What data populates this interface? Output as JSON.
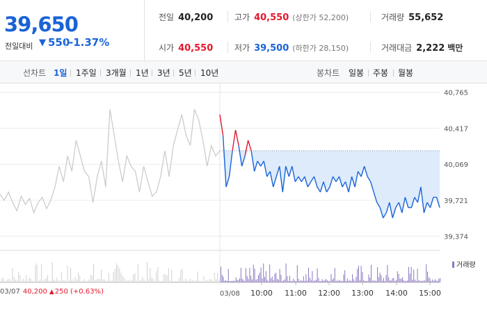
{
  "summary": {
    "current_price": "39,650",
    "change_label": "전일대비",
    "change_arrow": "▼",
    "change_abs": "550",
    "change_pct": "-1.37%",
    "prev_close": {
      "label": "전일",
      "value": "40,200"
    },
    "open": {
      "label": "시가",
      "value": "40,550"
    },
    "high": {
      "label": "고가",
      "value": "40,550",
      "extra": "(상한가 52,200)"
    },
    "low": {
      "label": "저가",
      "value": "39,500",
      "extra": "(하한가 28,150)"
    },
    "volume": {
      "label": "거래량",
      "value": "55,652"
    },
    "amount": {
      "label": "거래대금",
      "value": "2,222",
      "unit": "백만"
    }
  },
  "toolbar": {
    "line_label": "선차트",
    "periods": [
      "1일",
      "1주일",
      "3개월",
      "1년",
      "3년",
      "5년",
      "10년"
    ],
    "active_period": "1일",
    "candle_label": "봉차트",
    "candles": [
      "일봉",
      "주봉",
      "월봉"
    ]
  },
  "colors": {
    "blue": "#1a63d6",
    "red": "#e3182d",
    "gray_line": "#cccccc",
    "fill": "#deebfb",
    "volume": "#8b78c0"
  },
  "footer": {
    "prev_date": "03/07",
    "prev_price": "40,200",
    "prev_arrow": "▲",
    "prev_change": "250 (+0.63%)",
    "today_date": "03/08",
    "volume_legend": "거래량"
  },
  "chart_data": {
    "type": "line",
    "reference_price": 40200,
    "ylim": [
      39250,
      40850
    ],
    "yticks": [
      40765,
      40417,
      40069,
      39721,
      39374
    ],
    "ytick_labels": [
      "40,765",
      "40,417",
      "40,069",
      "39,721",
      "39,374"
    ],
    "xticks": [
      "10:00",
      "11:00",
      "12:00",
      "13:00",
      "14:00",
      "15:00"
    ],
    "series": [
      {
        "date": "03/07",
        "values": [
          39780,
          39720,
          39800,
          39700,
          39620,
          39760,
          39680,
          39740,
          39600,
          39700,
          39750,
          39640,
          39720,
          39850,
          40050,
          39900,
          40150,
          40000,
          40300,
          40150,
          40000,
          39950,
          39700,
          39950,
          40100,
          39850,
          40600,
          40350,
          40100,
          39900,
          40150,
          40050,
          40000,
          39800,
          40050,
          39900,
          39760,
          39800,
          39950,
          40200,
          39950,
          40250,
          40400,
          40550,
          40350,
          40250,
          40600,
          40500,
          40300,
          40050,
          40250,
          40150,
          40200
        ]
      },
      {
        "date": "03/08",
        "values": [
          40550,
          40350,
          39850,
          39950,
          40200,
          40400,
          40250,
          40050,
          40150,
          40300,
          40200,
          40000,
          40100,
          40050,
          40100,
          39950,
          40000,
          39850,
          39950,
          40050,
          39800,
          40050,
          39950,
          40050,
          39900,
          39950,
          39900,
          39950,
          39850,
          39900,
          39950,
          39850,
          39800,
          39900,
          39800,
          39850,
          39950,
          39900,
          39950,
          39850,
          39900,
          39800,
          39950,
          39850,
          40000,
          39950,
          40050,
          39950,
          39900,
          39800,
          39700,
          39650,
          39550,
          39600,
          39700,
          39550,
          39650,
          39700,
          39600,
          39750,
          39650,
          39650,
          39750,
          39700,
          39850,
          39600,
          39700,
          39650,
          39750,
          39750,
          39650
        ]
      }
    ]
  }
}
